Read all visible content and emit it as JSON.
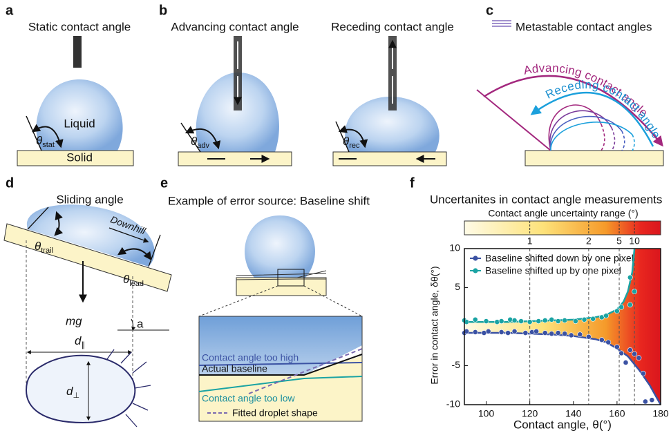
{
  "symbols": {
    "theta": "θ"
  },
  "panels": {
    "a": {
      "label": "a",
      "title": "Static contact angle",
      "liquid": "Liquid",
      "angle_sub": "stat",
      "solid": "Solid"
    },
    "b": {
      "label": "b",
      "advancing": "Advancing contact angle",
      "receding": "Receding contact angle",
      "adv_sub": "adv",
      "rec_sub": "rec"
    },
    "c": {
      "label": "c",
      "legend": "Metastable contact angles",
      "advancing": "Advancing contact angle",
      "receding": "Receding contact angle"
    },
    "d": {
      "label": "d",
      "title": "Sliding angle",
      "downhill": "Downhill",
      "trail_sub": "trail",
      "lead_sub": "lead",
      "weight": "mg",
      "tilt": "a",
      "d_parallel": "d",
      "parallel_sub": "∥",
      "d_perp": "d",
      "perp_sub": "⊥"
    },
    "e": {
      "label": "e",
      "title": "Example of error source: Baseline shift",
      "too_high": "Contact angle too high",
      "actual": "Actual baseline",
      "too_low": "Contact angle too low",
      "fitted": "Fitted droplet shape"
    }
  },
  "chart_data": {
    "type": "scatter",
    "panel_label": "f",
    "title": "Uncertanites in contact angle measurements",
    "colorbar_label": "Contact angle uncertainty range (°)",
    "colorbar_ticks": [
      1,
      2,
      5,
      10
    ],
    "threshold_angles": [
      120,
      147,
      161,
      168
    ],
    "x_label": "Contact angle, θ(°)",
    "y_label": "Error in contact angle, δθ(°)",
    "xlim": [
      90,
      180
    ],
    "xticks": [
      100,
      120,
      140,
      160,
      180
    ],
    "ylim": [
      -10,
      10
    ],
    "yticks": [
      -10,
      -5,
      5,
      10
    ],
    "legend": "upper left",
    "series": [
      {
        "name": "Baseline shifted down by one pixel",
        "color": "#3b52a3",
        "x": [
          90,
          91,
          95,
          99,
          101,
          107,
          110,
          113,
          118,
          121,
          123,
          127,
          130,
          133,
          136,
          139,
          143,
          147,
          153,
          156,
          160,
          162,
          164,
          166,
          168,
          170,
          172,
          173,
          176
        ],
        "values": [
          -0.8,
          -0.6,
          -0.7,
          -0.8,
          -0.6,
          -0.7,
          -0.8,
          -0.6,
          -0.8,
          -0.7,
          -0.6,
          -0.8,
          -0.9,
          -0.8,
          -0.9,
          -1.1,
          -1.0,
          -1.3,
          -1.7,
          -2.0,
          -2.6,
          -3.4,
          -4.6,
          -3.0,
          -3.5,
          -4.0,
          -6.0,
          -9.6,
          -9.4
        ],
        "fit": {
          "x": [
            90,
            100,
            110,
            120,
            130,
            140,
            150,
            155,
            160,
            165,
            170,
            175,
            180
          ],
          "values": [
            -0.8,
            -0.8,
            -0.8,
            -0.9,
            -1,
            -1.2,
            -1.6,
            -2,
            -2.8,
            -3.8,
            -5.5,
            -7.5,
            -10
          ]
        }
      },
      {
        "name": "Baseline shifted up by one pixel",
        "color": "#1aa3a3",
        "x": [
          90,
          91,
          95,
          100,
          105,
          107,
          111,
          113,
          116,
          120,
          124,
          127,
          130,
          133,
          136,
          141,
          145,
          149,
          153,
          155,
          160,
          162,
          166,
          166,
          168
        ],
        "values": [
          0.8,
          0.6,
          0.9,
          0.7,
          0.6,
          0.7,
          0.9,
          0.8,
          0.7,
          0.6,
          0.7,
          0.8,
          0.9,
          0.7,
          0.8,
          0.7,
          0.9,
          1.0,
          1.2,
          1.4,
          2.0,
          2.5,
          2.8,
          6.3,
          4.5
        ],
        "fit": {
          "x": [
            90,
            100,
            110,
            120,
            130,
            140,
            150,
            155,
            160,
            163,
            165,
            167,
            168
          ],
          "values": [
            0.6,
            0.6,
            0.6,
            0.7,
            0.8,
            0.9,
            1.2,
            1.5,
            2.2,
            3.2,
            4.5,
            7,
            10
          ]
        }
      }
    ]
  }
}
